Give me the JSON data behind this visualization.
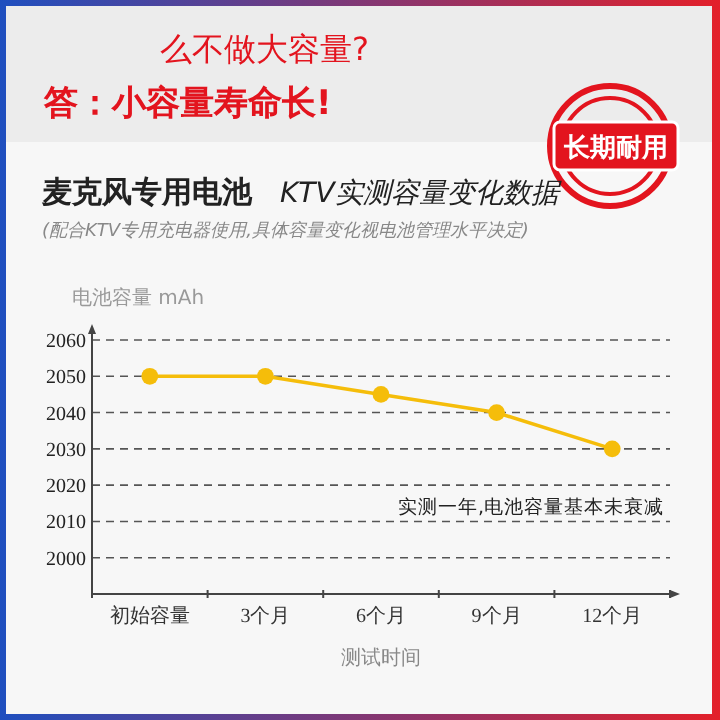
{
  "chart_data": {
    "type": "line",
    "title": "麦克风专用电池",
    "subtitle": "KTV实测容量变化数据",
    "ylabel": "电池容量 mAh",
    "xlabel": "测试时间",
    "categories": [
      "初始容量",
      "3个月",
      "6个月",
      "9个月",
      "12个月"
    ],
    "series": [
      {
        "color": "#f5bd0a",
        "values": [
          2050,
          2050,
          2045,
          2040,
          2030
        ]
      }
    ],
    "ylim": [
      1990,
      2060
    ],
    "yticks": [
      2000,
      2010,
      2020,
      2030,
      2040,
      2050,
      2060
    ],
    "grid": "y",
    "line_style": "solid",
    "marker": "circle",
    "annotations": [
      "么不做大容量?",
      "答：小容量寿命长!",
      "长期耐用",
      "(配合KTV专用充电器使用,具体容量变化视电池管理水平决定)",
      "实测一年,电池容量基本未衰减"
    ]
  }
}
